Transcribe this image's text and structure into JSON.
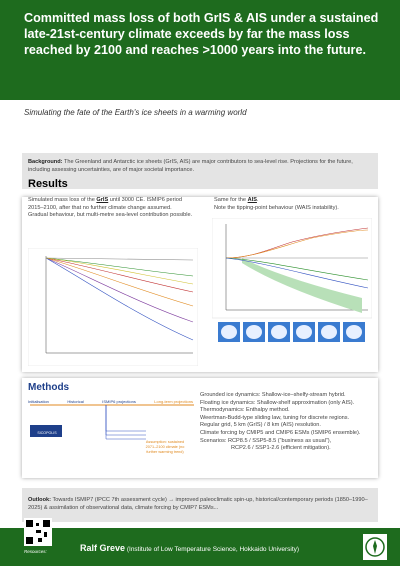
{
  "header": {
    "title": "Committed mass loss of both GrIS & AIS under a sustained late-21st-century climate exceeds by far the mass loss reached by 2100 and reaches >1000 years into the future."
  },
  "subtitle": "Simulating the fate of the Earth's ice sheets in a warming world",
  "background": {
    "label": "Background:",
    "text": "The Greenland and Antarctic ice sheets (GrIS, AIS) are major contributors to sea-level rise. Projections for the future, including assessing uncertainties, are of major societal importance."
  },
  "results": {
    "heading": "Results",
    "left": {
      "before": "Simulated mass loss of the ",
      "highlight": "GrIS",
      "after": " until 3000 CE. ISMIP6 period 2015–2100, after that no further climate change assumed. Gradual behaviour, but multi-metre sea-level contribution possible."
    },
    "right": {
      "before": "Same for the ",
      "highlight": "AIS",
      "after": ".",
      "note": "Note the tipping-point behaviour (WAIS instability)."
    }
  },
  "methods": {
    "heading": "Methods",
    "flow": [
      "Initialisation",
      "Historical",
      "ISMIP6 projections",
      "Long-term projections"
    ],
    "model": "SICOPOLIS",
    "assumption": "Assumption: sustained 2071–2100 climate (no further warming trend)",
    "items": [
      "Grounded ice dynamics: Shallow-ice–shelfy-stream hybrid.",
      "Floating ice dynamics: Shallow-shelf approximation (only AIS).",
      "Thermodynamics: Enthalpy method.",
      "Weertman-Budd-type sliding law, tuning for discrete regions.",
      "Regular grid, 5 km (GrIS) / 8 km (AIS) resolution.",
      "Climate forcing by CMIP5 and CMIP6 ESMs (ISMIP6 ensemble).",
      "Scenarios:  RCP8.5 / SSP5-8.5 (“business as usual”),",
      "RCP2.6 / SSP1-2.6 (efficient mitigation)."
    ]
  },
  "outlook": {
    "label": "Outlook:",
    "text": "Towards ISMIP7 (IPCC 7th assessment cycle) → improved paleoclimatic spin-up, historical/contemporary periods (1850–1990–2025) & assimilation of observational data, climate forcing by CMIP7 ESMs..."
  },
  "footer": {
    "resources": "Resources:",
    "name": "Ralf Greve",
    "affiliation": "(Institute of Low Temperature Science, Hokkaido University)"
  }
}
